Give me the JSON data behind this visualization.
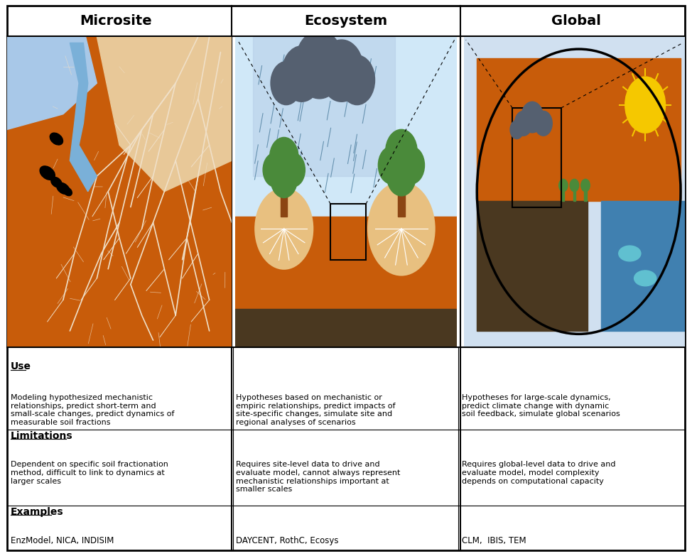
{
  "col_headers": [
    "Microsite",
    "Ecosystem",
    "Global"
  ],
  "section_labels": [
    "Use",
    "Limitations",
    "Examples"
  ],
  "use_texts": [
    "Modeling hypothesized mechanistic\nrelationships, predict short-term and\nsmall-scale changes, predict dynamics of\nmeasurable soil fractions",
    "Hypotheses based on mechanistic or\nempiric relationships, predict impacts of\nsite-specific changes, simulate site and\nregional analyses of scenarios",
    "Hypotheses for large-scale dynamics,\npredict climate change with dynamic\nsoil feedback, simulate global scenarios"
  ],
  "limitations_texts": [
    "Dependent on specific soil fractionation\nmethod, difficult to link to dynamics at\nlarger scales",
    "Requires site-level data to drive and\nevaluate model, cannot always represent\nmechanistic relationships important at\nsmaller scales",
    "Requires global-level data to drive and\nevaluate model, model complexity\ndepends on computational capacity"
  ],
  "examples_texts": [
    "EnzModel, NICA, INDISIM",
    "DAYCENT, RothC, Ecosys",
    "CLM,  IBIS, TEM"
  ],
  "bg_color": "#ffffff",
  "header_bg": "#ffffff",
  "microsite_soil_color": "#c85c0a",
  "microsite_sky_color": "#a8c8e8",
  "microsite_light_soil": "#e8c898",
  "microsite_root_color": "#f0e0c8",
  "ecosystem_sky_color": "#d0e8f8",
  "ecosystem_rain_color": "#6090c0",
  "ecosystem_soil_color": "#c85c0a",
  "ecosystem_dark_soil": "#4a3820",
  "global_sky_color": "#d0e0f0",
  "global_ocean_color": "#4080b0",
  "global_soil_color": "#c85c0a",
  "global_dark_soil": "#4a3820"
}
